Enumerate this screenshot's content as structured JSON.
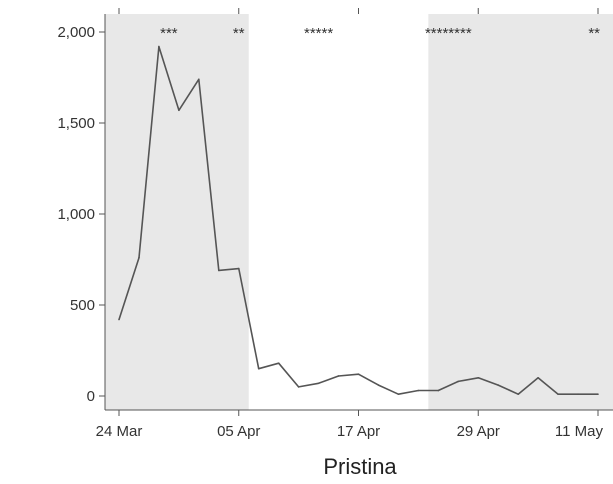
{
  "chart_data": {
    "type": "line",
    "title": "",
    "xlabel": "Pristina",
    "ylabel": "",
    "x": [
      "24 Mar",
      "26 Mar",
      "28 Mar",
      "30 Mar",
      "01 Apr",
      "03 Apr",
      "05 Apr",
      "07 Apr",
      "09 Apr",
      "11 Apr",
      "13 Apr",
      "15 Apr",
      "17 Apr",
      "19 Apr",
      "21 Apr",
      "23 Apr",
      "25 Apr",
      "27 Apr",
      "29 Apr",
      "01 May",
      "03 May",
      "05 May",
      "07 May",
      "09 May",
      "11 May"
    ],
    "series": [
      {
        "values": [
          420,
          760,
          1920,
          1570,
          1740,
          690,
          700,
          150,
          180,
          50,
          70,
          110,
          120,
          60,
          10,
          30,
          30,
          80,
          100,
          60,
          10,
          100,
          10,
          10,
          10
        ]
      }
    ],
    "ylim": [
      -60,
      2100
    ],
    "yticks": [
      0,
      500,
      1000,
      1500,
      2000
    ],
    "ytick_labels": [
      "0",
      "500",
      "1,000",
      "1,500",
      "2,000"
    ],
    "xticks": [
      "24 Mar",
      "05 Apr",
      "17 Apr",
      "29 Apr",
      "11 May"
    ],
    "xtick_labels": [
      "24 Mar",
      "05 Apr",
      "17 Apr",
      "29 Apr",
      "11 May"
    ],
    "shaded_periods": [
      {
        "start": "24 Mar",
        "end": "06 Apr"
      },
      {
        "start": "24 Apr",
        "end": "13 May"
      }
    ],
    "annotations": [
      {
        "label": "***",
        "x": "29 Mar"
      },
      {
        "label": "**",
        "x": "05 Apr"
      },
      {
        "label": "*****",
        "x": "13 Apr"
      },
      {
        "label": "********",
        "x": "26 Apr"
      },
      {
        "label": "**",
        "x": "11 May"
      }
    ],
    "colors": {
      "line": "#555555",
      "shade": "#e8e8e8",
      "axis": "#555555"
    }
  }
}
